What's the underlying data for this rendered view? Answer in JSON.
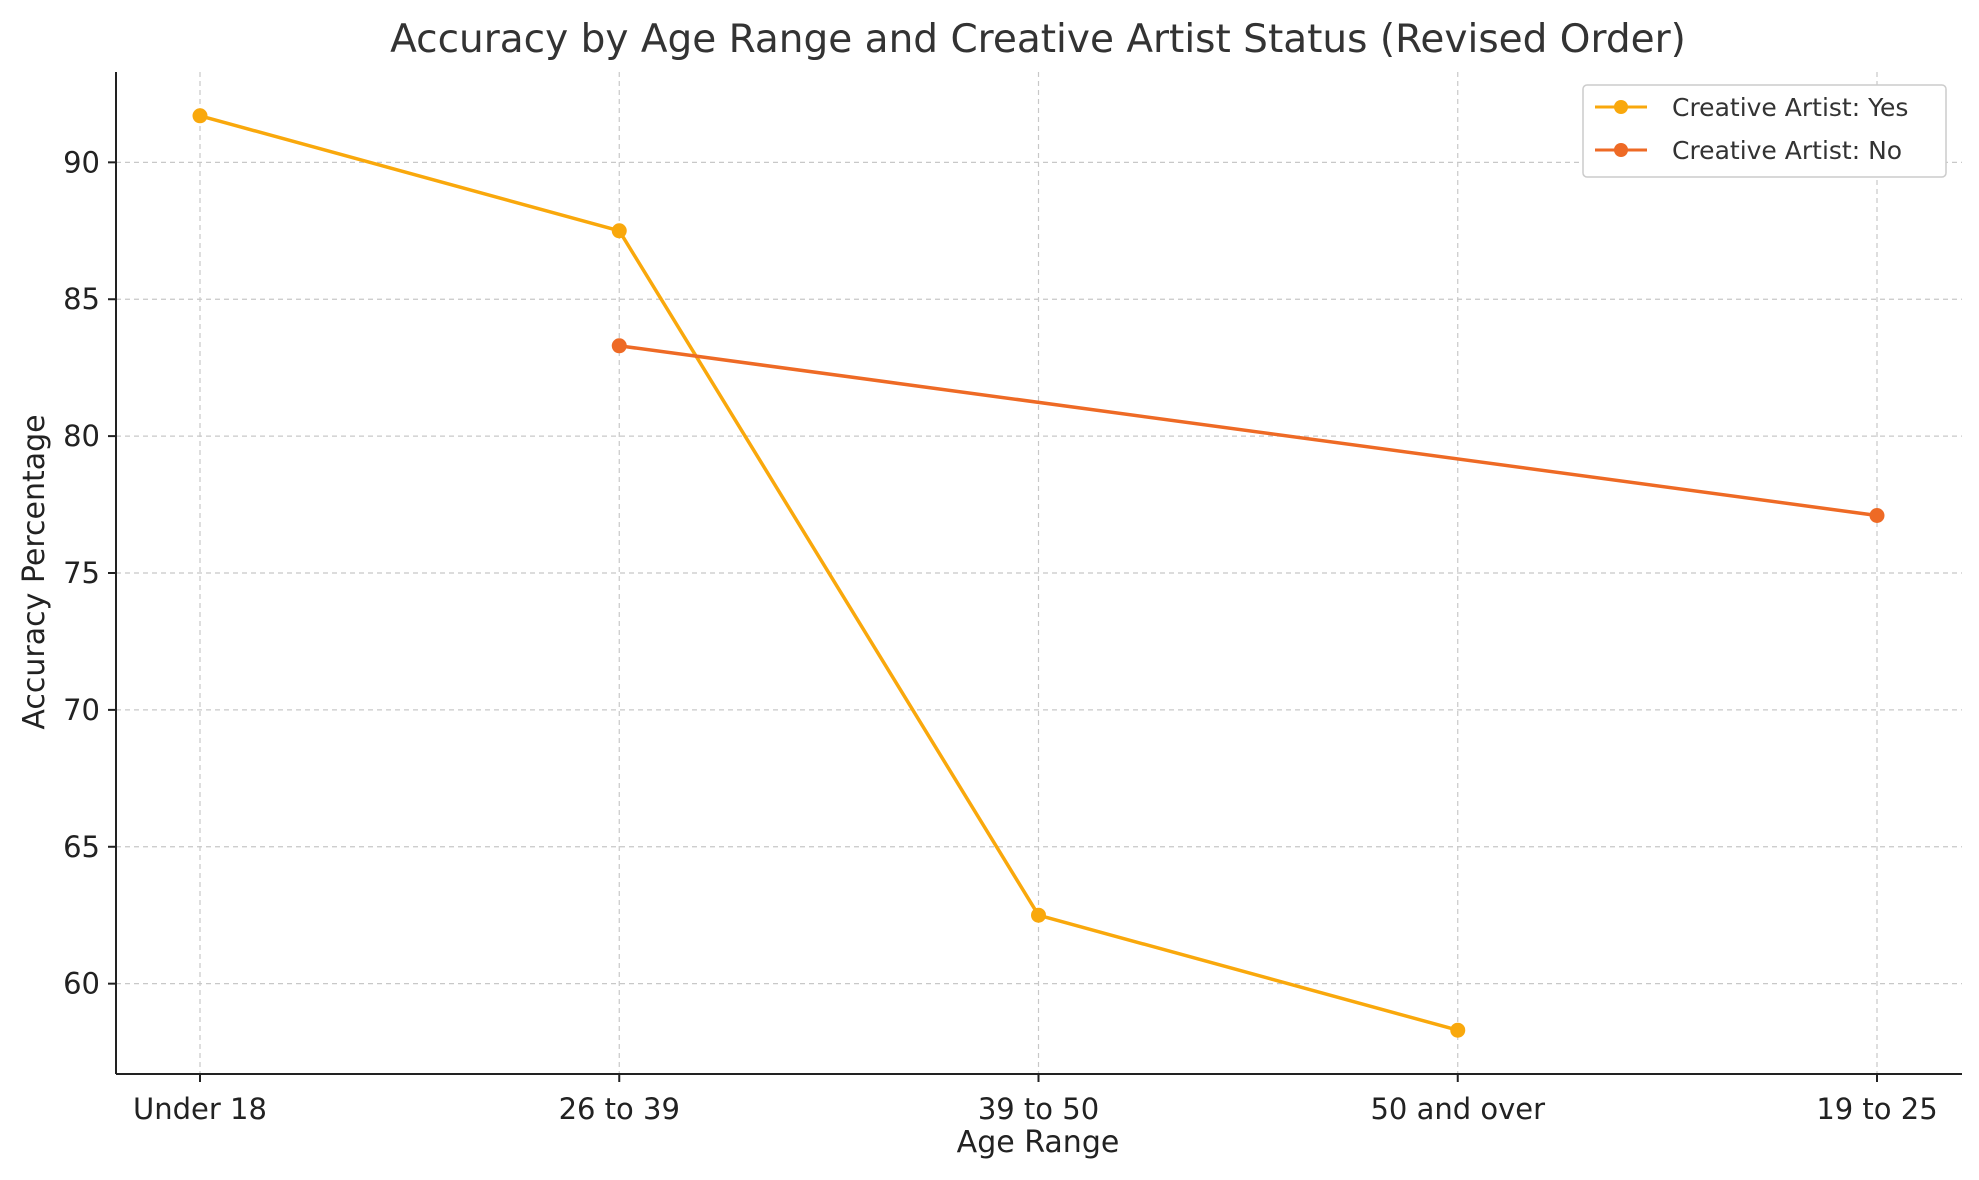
{
  "chart_data": {
    "type": "line",
    "title": "Accuracy by Age Range and Creative Artist Status (Revised Order)",
    "xlabel": "Age Range",
    "ylabel": "Accuracy Percentage",
    "categories": [
      "Under 18",
      "26 to 39",
      "39 to 50",
      "50 and over",
      "19 to 25"
    ],
    "y_ticks": [
      60,
      65,
      70,
      75,
      80,
      85,
      90
    ],
    "ylim": [
      56.7,
      93.3
    ],
    "grid": true,
    "legend_position": "top-right",
    "series": [
      {
        "name": "Creative Artist: Yes",
        "color": "#F9A80C",
        "values": [
          91.7,
          87.5,
          62.5,
          58.3,
          null
        ]
      },
      {
        "name": "Creative Artist: No",
        "color": "#EE6A25",
        "values": [
          null,
          83.3,
          null,
          null,
          77.1
        ]
      }
    ]
  }
}
